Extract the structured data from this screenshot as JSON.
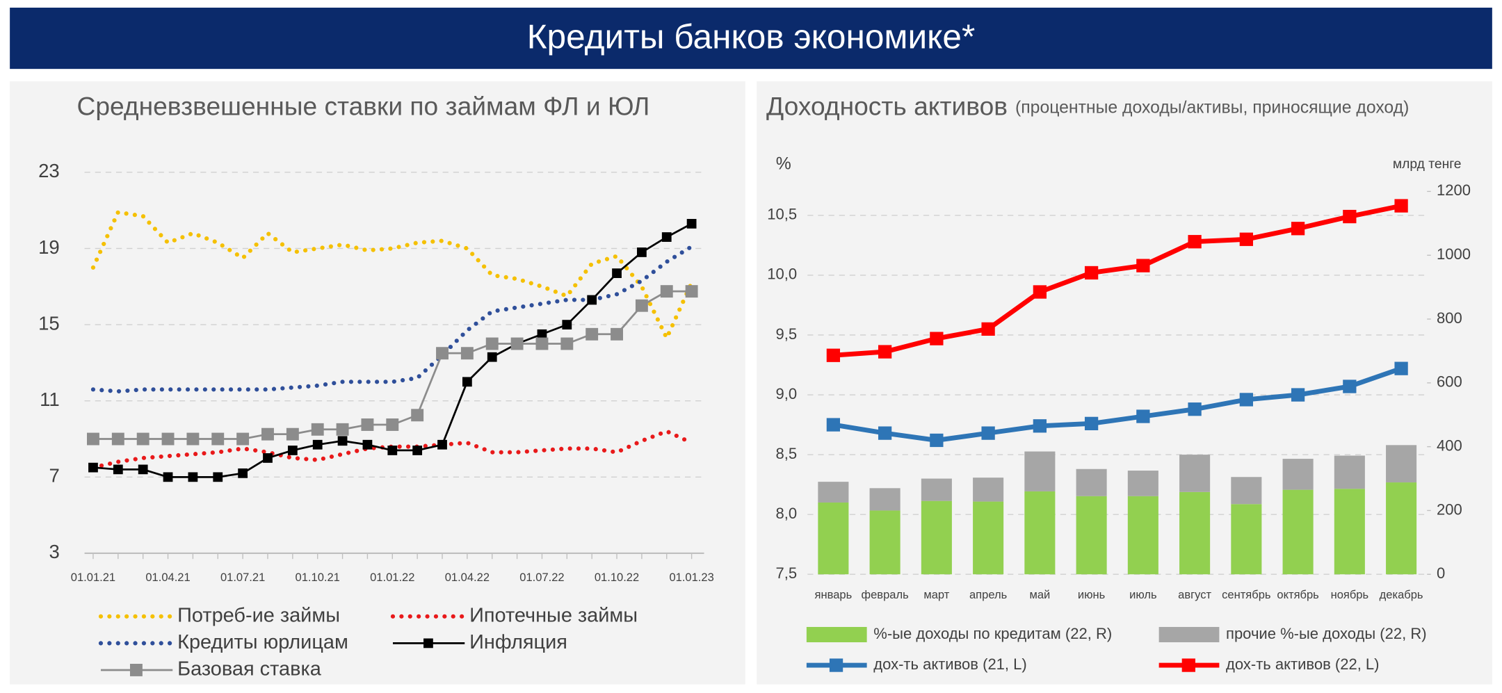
{
  "header": {
    "title": "Кредиты банков экономике*"
  },
  "chart_data": [
    {
      "type": "line",
      "title": "Средневзвешенные ставки по займам ФЛ и ЮЛ",
      "categories": [
        "01.01.21",
        null,
        null,
        "01.04.21",
        null,
        null,
        "01.07.21",
        null,
        null,
        "01.10.21",
        null,
        null,
        "01.01.22",
        null,
        null,
        "01.04.22",
        null,
        null,
        "01.07.22",
        null,
        null,
        "01.10.22",
        null,
        null,
        "01.01.23"
      ],
      "series": [
        {
          "name": "Потреб-ие займы",
          "color": "#f5c000",
          "line_style": "dotted",
          "values": [
            18.0,
            20.9,
            20.7,
            19.3,
            19.8,
            19.3,
            18.5,
            19.8,
            18.8,
            19.0,
            19.2,
            18.9,
            19.0,
            19.3,
            19.4,
            19.0,
            17.6,
            17.4,
            17.0,
            16.5,
            18.2,
            18.6,
            17.0,
            14.3,
            17.2
          ]
        },
        {
          "name": "Ипотечные займы",
          "color": "#e8191a",
          "line_style": "dotted",
          "values": [
            7.5,
            7.8,
            8.0,
            8.1,
            8.2,
            8.3,
            8.5,
            8.3,
            8.0,
            7.9,
            8.2,
            8.5,
            8.6,
            8.6,
            8.7,
            8.8,
            8.3,
            8.3,
            8.4,
            8.5,
            8.5,
            8.3,
            8.9,
            9.4,
            8.8
          ]
        },
        {
          "name": "Кредиты юрлицам",
          "color": "#2f4f9a",
          "line_style": "dotted",
          "values": [
            11.6,
            11.5,
            11.6,
            11.6,
            11.6,
            11.6,
            11.6,
            11.6,
            11.7,
            11.8,
            12.0,
            12.0,
            12.0,
            12.2,
            13.4,
            14.7,
            15.7,
            15.9,
            16.1,
            16.3,
            16.3,
            16.6,
            17.3,
            18.3,
            19.1
          ]
        },
        {
          "name": "Инфляция",
          "color": "#000000",
          "marker": "square",
          "values": [
            7.5,
            7.4,
            7.4,
            7.0,
            7.0,
            7.0,
            7.2,
            8.0,
            8.4,
            8.7,
            8.9,
            8.7,
            8.4,
            8.4,
            8.7,
            12.0,
            13.3,
            14.0,
            14.5,
            15.0,
            16.3,
            17.7,
            18.8,
            19.6,
            20.3
          ]
        },
        {
          "name": "Базовая ставка",
          "color": "#8c8c8c",
          "marker": "square",
          "values": [
            9.0,
            9.0,
            9.0,
            9.0,
            9.0,
            9.0,
            9.0,
            9.25,
            9.25,
            9.5,
            9.5,
            9.75,
            9.75,
            10.25,
            13.5,
            13.5,
            14.0,
            14.0,
            14.0,
            14.0,
            14.5,
            14.5,
            16.0,
            16.75,
            16.75
          ]
        }
      ],
      "ylim": [
        3,
        23
      ],
      "yticks": [
        3,
        7,
        11,
        15,
        19,
        23
      ],
      "grid": true
    },
    {
      "type": "combo",
      "title": "Доходность активов",
      "subtitle": "(процентные доходы/активы, приносящие доход)",
      "y_label": "%",
      "y2_label": "млрд тенге",
      "categories": [
        "январь",
        "февраль",
        "март",
        "апрель",
        "май",
        "июнь",
        "июль",
        "август",
        "сентябрь",
        "октябрь",
        "ноябрь",
        "декабрь"
      ],
      "series": [
        {
          "name": "%-ые доходы по кредитам (22, R)",
          "type": "bar",
          "axis": "y2",
          "color": "#92d050",
          "values": [
            225,
            200,
            230,
            228,
            260,
            245,
            245,
            258,
            220,
            265,
            268,
            288
          ]
        },
        {
          "name": "прочие %-ые доходы (22, R)",
          "type": "bar",
          "axis": "y2",
          "color": "#a6a6a6",
          "values": [
            65,
            70,
            70,
            75,
            125,
            85,
            80,
            117,
            85,
            97,
            104,
            117
          ]
        },
        {
          "name": "дох-ть активов (21, L)",
          "type": "line",
          "color": "#2e75b6",
          "marker": "square",
          "values": [
            8.75,
            8.68,
            8.62,
            8.68,
            8.74,
            8.76,
            8.82,
            8.88,
            8.96,
            9.0,
            9.07,
            9.22
          ]
        },
        {
          "name": "дох-ть активов (22, L)",
          "type": "line",
          "color": "#ff0000",
          "marker": "square",
          "values": [
            9.33,
            9.36,
            9.47,
            9.55,
            9.86,
            10.02,
            10.08,
            10.28,
            10.3,
            10.39,
            10.49,
            10.58
          ]
        }
      ],
      "ylim": [
        7.5,
        10.7
      ],
      "yticks": [
        {
          "value": 7.5,
          "label": "7,5"
        },
        {
          "value": 8.0,
          "label": "8,0"
        },
        {
          "value": 8.5,
          "label": "8,5"
        },
        {
          "value": 9.0,
          "label": "9,0"
        },
        {
          "value": 9.5,
          "label": "9,5"
        },
        {
          "value": 10.0,
          "label": "10,0"
        },
        {
          "value": 10.5,
          "label": "10,5"
        }
      ],
      "y2lim": [
        0,
        1200
      ],
      "y2ticks": [
        0,
        200,
        400,
        600,
        800,
        1000,
        1200
      ],
      "grid": true
    }
  ]
}
